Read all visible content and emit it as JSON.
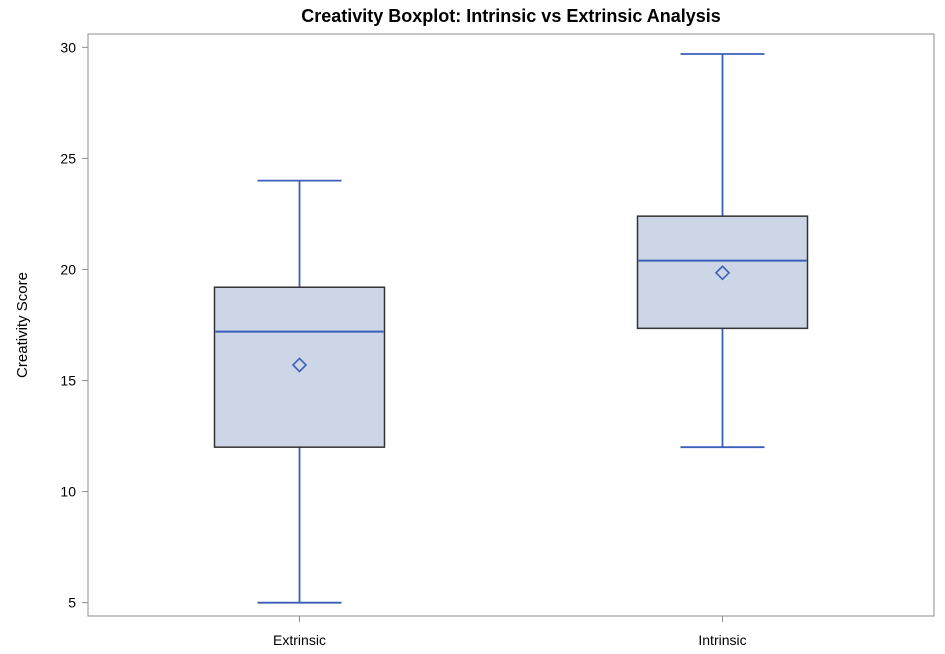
{
  "chart_data": {
    "type": "boxplot",
    "title": "Creativity Boxplot: Intrinsic vs Extrinsic Analysis",
    "xlabel": "",
    "ylabel": "Creativity Score",
    "ylim": [
      4.4,
      30.6
    ],
    "yticks": [
      "5",
      "10",
      "15",
      "20",
      "25",
      "30"
    ],
    "ytick_values": [
      5,
      10,
      15,
      20,
      25,
      30
    ],
    "categories": [
      "Extrinsic",
      "Intrinsic"
    ],
    "boxes": [
      {
        "category": "Extrinsic",
        "min": 5,
        "q1": 12,
        "median": 17.2,
        "mean": 15.7,
        "q3": 19.2,
        "max": 24
      },
      {
        "category": "Intrinsic",
        "min": 12,
        "q1": 17.35,
        "median": 20.4,
        "mean": 19.85,
        "q3": 22.4,
        "max": 29.7
      }
    ],
    "grid": false,
    "colors": {
      "box_fill": "#ccd6e6",
      "box_edge": "#333333",
      "lines": "#3a5fb8"
    }
  }
}
